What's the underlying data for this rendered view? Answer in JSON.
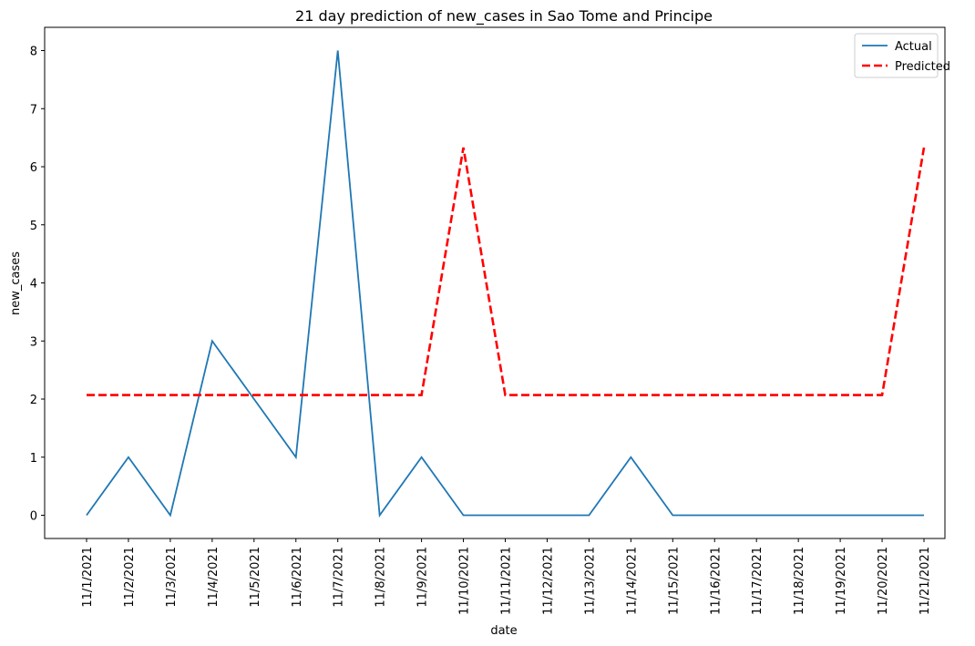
{
  "chart_data": {
    "type": "line",
    "title": "21 day prediction of new_cases in Sao Tome and Principe",
    "xlabel": "date",
    "ylabel": "new_cases",
    "x": [
      "11/1/2021",
      "11/2/2021",
      "11/3/2021",
      "11/4/2021",
      "11/5/2021",
      "11/6/2021",
      "11/7/2021",
      "11/8/2021",
      "11/9/2021",
      "11/10/2021",
      "11/11/2021",
      "11/12/2021",
      "11/13/2021",
      "11/14/2021",
      "11/15/2021",
      "11/16/2021",
      "11/17/2021",
      "11/18/2021",
      "11/19/2021",
      "11/20/2021",
      "11/21/2021"
    ],
    "yticks": [
      0,
      1,
      2,
      3,
      4,
      5,
      6,
      7,
      8
    ],
    "ylim": [
      -0.4,
      8.4
    ],
    "grid": false,
    "legend_position": "top-right",
    "series": [
      {
        "name": "Actual",
        "color": "#1f77b4",
        "style": "solid",
        "values": [
          0,
          1,
          0,
          3,
          2,
          1,
          8,
          0,
          1,
          0,
          0,
          0,
          0,
          1,
          0,
          0,
          0,
          0,
          0,
          0,
          0
        ]
      },
      {
        "name": "Predicted",
        "color": "#ff0000",
        "style": "dashed",
        "values": [
          2.07,
          2.07,
          2.07,
          2.07,
          2.07,
          2.07,
          2.07,
          2.07,
          2.07,
          6.33,
          2.07,
          2.07,
          2.07,
          2.07,
          2.07,
          2.07,
          2.07,
          2.07,
          2.07,
          2.07,
          6.33
        ]
      }
    ]
  }
}
